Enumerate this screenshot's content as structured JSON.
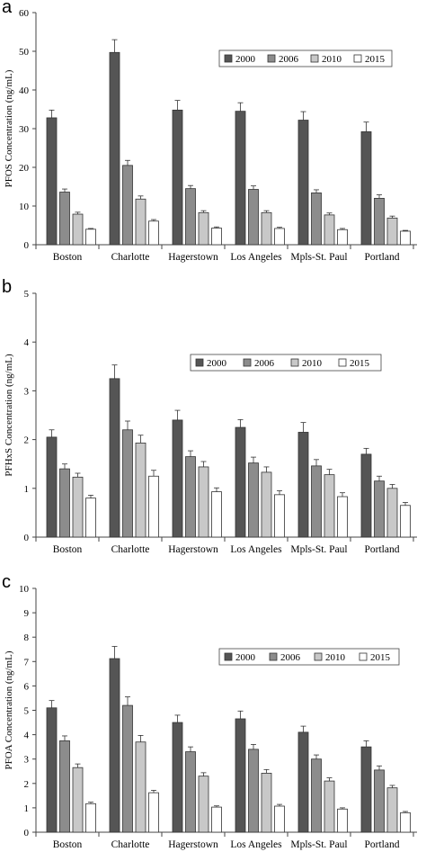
{
  "chart_data": [
    {
      "type": "bar",
      "panel_label": "a",
      "ylabel": "PFOS Concentration (ng/mL)",
      "ylim": [
        0,
        60
      ],
      "yticks": [
        0,
        10,
        20,
        30,
        40,
        50,
        60
      ],
      "categories": [
        "Boston",
        "Charlotte",
        "Hagerstown",
        "Los Angeles",
        "Mpls-St. Paul",
        "Portland"
      ],
      "series": [
        {
          "name": "2000",
          "color": "#555555",
          "values": [
            32.8,
            49.7,
            34.8,
            34.5,
            32.2,
            29.2
          ],
          "errors": [
            2.0,
            3.3,
            2.5,
            2.2,
            2.2,
            2.5
          ]
        },
        {
          "name": "2006",
          "color": "#8c8c8c",
          "values": [
            13.6,
            20.5,
            14.5,
            14.3,
            13.4,
            12.0
          ],
          "errors": [
            0.8,
            1.3,
            0.8,
            0.9,
            0.8,
            0.9
          ]
        },
        {
          "name": "2010",
          "color": "#c8c8c8",
          "values": [
            7.9,
            11.8,
            8.3,
            8.3,
            7.7,
            6.9
          ],
          "errors": [
            0.5,
            0.8,
            0.5,
            0.5,
            0.5,
            0.5
          ]
        },
        {
          "name": "2015",
          "color": "#ffffff",
          "values": [
            4.0,
            6.1,
            4.3,
            4.2,
            3.9,
            3.5
          ],
          "errors": [
            0.2,
            0.4,
            0.3,
            0.3,
            0.3,
            0.2
          ]
        }
      ],
      "legend_position": "top-right",
      "grid": false
    },
    {
      "type": "bar",
      "panel_label": "b",
      "ylabel": "PFHxS Concentration (ng/mL)",
      "ylim": [
        0,
        5
      ],
      "yticks": [
        0,
        1,
        2,
        3,
        4,
        5
      ],
      "categories": [
        "Boston",
        "Charlotte",
        "Hagerstown",
        "Los Angeles",
        "Mpls-St. Paul",
        "Portland"
      ],
      "series": [
        {
          "name": "2000",
          "color": "#555555",
          "values": [
            2.05,
            3.25,
            2.4,
            2.25,
            2.15,
            1.7
          ],
          "errors": [
            0.15,
            0.28,
            0.2,
            0.16,
            0.2,
            0.12
          ]
        },
        {
          "name": "2006",
          "color": "#8c8c8c",
          "values": [
            1.4,
            2.2,
            1.65,
            1.52,
            1.46,
            1.15
          ],
          "errors": [
            0.1,
            0.18,
            0.12,
            0.12,
            0.13,
            0.1
          ]
        },
        {
          "name": "2010",
          "color": "#c8c8c8",
          "values": [
            1.23,
            1.93,
            1.44,
            1.33,
            1.28,
            1.0
          ],
          "errors": [
            0.08,
            0.16,
            0.11,
            0.11,
            0.11,
            0.08
          ]
        },
        {
          "name": "2015",
          "color": "#ffffff",
          "values": [
            0.8,
            1.25,
            0.93,
            0.87,
            0.83,
            0.65
          ],
          "errors": [
            0.06,
            0.12,
            0.08,
            0.08,
            0.08,
            0.06
          ]
        }
      ],
      "legend_position": "top-right",
      "grid": false
    },
    {
      "type": "bar",
      "panel_label": "c",
      "ylabel": "PFOA Concentration (ng/mL)",
      "ylim": [
        0,
        10
      ],
      "yticks": [
        0,
        1,
        2,
        3,
        4,
        5,
        6,
        7,
        8,
        9,
        10
      ],
      "categories": [
        "Boston",
        "Charlotte",
        "Hagerstown",
        "Los Angeles",
        "Mpls-St. Paul",
        "Portland"
      ],
      "series": [
        {
          "name": "2000",
          "color": "#555555",
          "values": [
            5.1,
            7.12,
            4.5,
            4.65,
            4.1,
            3.5
          ],
          "errors": [
            0.3,
            0.5,
            0.3,
            0.32,
            0.25,
            0.25
          ]
        },
        {
          "name": "2006",
          "color": "#8c8c8c",
          "values": [
            3.75,
            5.2,
            3.3,
            3.4,
            3.0,
            2.55
          ],
          "errors": [
            0.2,
            0.35,
            0.2,
            0.2,
            0.17,
            0.17
          ]
        },
        {
          "name": "2010",
          "color": "#c8c8c8",
          "values": [
            2.65,
            3.7,
            2.3,
            2.42,
            2.1,
            1.82
          ],
          "errors": [
            0.15,
            0.27,
            0.14,
            0.15,
            0.13,
            0.1
          ]
        },
        {
          "name": "2015",
          "color": "#ffffff",
          "values": [
            1.17,
            1.62,
            1.03,
            1.07,
            0.95,
            0.8
          ],
          "errors": [
            0.06,
            0.1,
            0.05,
            0.07,
            0.05,
            0.05
          ]
        }
      ],
      "legend_position": "top-right",
      "grid": false
    }
  ]
}
